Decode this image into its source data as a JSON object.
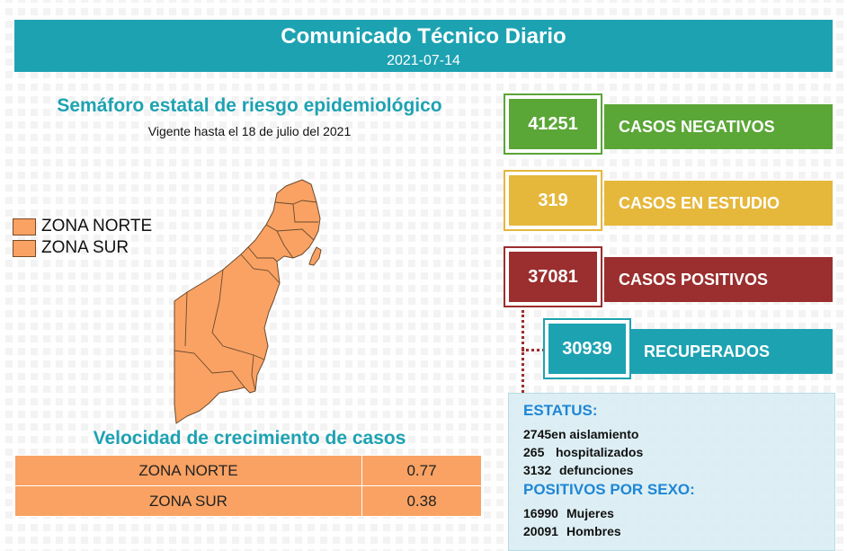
{
  "header": {
    "title": "Comunicado Técnico Diario",
    "date": "2021-07-14"
  },
  "semaforo": {
    "title": "Semáforo estatal de riesgo epidemiológico",
    "subtitle": "Vigente hasta el 18 de julio del 2021"
  },
  "legend": [
    {
      "label": "ZONA NORTE"
    },
    {
      "label": "ZONA SUR"
    }
  ],
  "map": {
    "fill_color": "#f9a263",
    "stroke_color": "#6b4a2e"
  },
  "velocidad": {
    "title": "Velocidad de crecimiento de casos",
    "rows": [
      {
        "zone": "ZONA NORTE",
        "value": "0.77"
      },
      {
        "zone": "ZONA SUR",
        "value": "0.38"
      }
    ]
  },
  "stats": {
    "negativos": {
      "value": "41251",
      "label": "CASOS NEGATIVOS",
      "color": "#5aa637"
    },
    "estudio": {
      "value": "319",
      "label": "CASOS EN ESTUDIO",
      "color": "#e5b73b"
    },
    "positivos": {
      "value": "37081",
      "label": "CASOS POSITIVOS",
      "color": "#9b2e2e"
    },
    "recuperados": {
      "value": "30939",
      "label": "RECUPERADOS",
      "color": "#1da2b2"
    }
  },
  "estatus": {
    "heading": "ESTATUS:",
    "lines": [
      {
        "num": "2745",
        "text": "en aislamiento"
      },
      {
        "num": "265",
        "text": "hospitalizados"
      },
      {
        "num": "3132",
        "text": "defunciones"
      }
    ]
  },
  "sexo": {
    "heading": "POSITIVOS POR SEXO:",
    "lines": [
      {
        "num": "16990",
        "text": "Mujeres"
      },
      {
        "num": "20091",
        "text": "Hombres"
      }
    ]
  }
}
